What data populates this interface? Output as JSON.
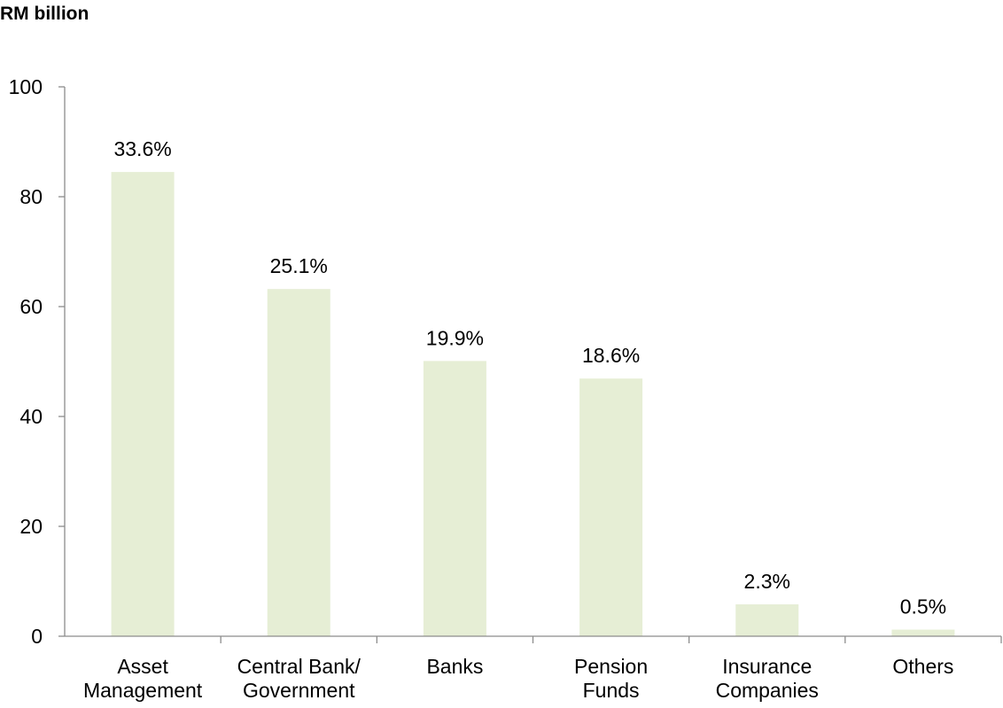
{
  "chart_data": {
    "type": "bar",
    "unit_label": "RM billion",
    "categories": [
      [
        "Asset",
        "Management"
      ],
      [
        "Central Bank/",
        "Government"
      ],
      [
        "Banks"
      ],
      [
        "Pension",
        "Funds"
      ],
      [
        "Insurance",
        "Companies"
      ],
      [
        "Others"
      ]
    ],
    "values": [
      84.5,
      63.2,
      50.1,
      46.9,
      5.8,
      1.2
    ],
    "data_labels": [
      "33.6%",
      "25.1%",
      "19.9%",
      "18.6%",
      "2.3%",
      "0.5%"
    ],
    "ylim": [
      0,
      100
    ],
    "yticks": [
      0,
      20,
      40,
      60,
      80,
      100
    ],
    "bar_color": "#e6eed5",
    "axis_color": "#8c8c8c",
    "grid": false,
    "legend": "none"
  }
}
